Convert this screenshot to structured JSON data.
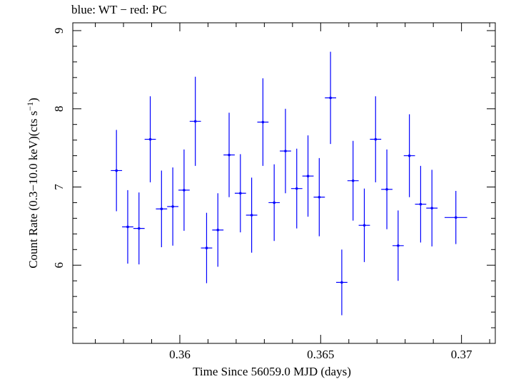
{
  "chart_data": {
    "type": "scatter",
    "title": "blue: WT − red: PC",
    "xlabel": "Time Since 56059.0 MJD (days)",
    "ylabel_prefix": "Count Rate (0.3−10.0 keV)(cts s",
    "ylabel_sup": "−1",
    "ylabel_suffix": ")",
    "xlim": [
      0.3562,
      0.3712
    ],
    "ylim": [
      5.0,
      9.1
    ],
    "xticks": [
      0.36,
      0.365,
      0.37
    ],
    "xtick_labels": [
      "0.36",
      "0.365",
      "0.37"
    ],
    "yticks": [
      6,
      7,
      8,
      9
    ],
    "ytick_labels": [
      "6",
      "7",
      "8",
      "9"
    ],
    "series": [
      {
        "color": "#0000ff",
        "points": [
          {
            "x": 0.35775,
            "y": 7.21,
            "xerr": 0.0002,
            "yerr": 0.52
          },
          {
            "x": 0.35815,
            "y": 6.49,
            "xerr": 0.0002,
            "yerr": 0.47
          },
          {
            "x": 0.35855,
            "y": 6.47,
            "xerr": 0.0002,
            "yerr": 0.46
          },
          {
            "x": 0.35895,
            "y": 7.61,
            "xerr": 0.0002,
            "yerr": 0.55
          },
          {
            "x": 0.35935,
            "y": 6.72,
            "xerr": 0.0002,
            "yerr": 0.49
          },
          {
            "x": 0.35975,
            "y": 6.75,
            "xerr": 0.0002,
            "yerr": 0.5
          },
          {
            "x": 0.36015,
            "y": 6.96,
            "xerr": 0.0002,
            "yerr": 0.52
          },
          {
            "x": 0.36055,
            "y": 7.84,
            "xerr": 0.0002,
            "yerr": 0.57
          },
          {
            "x": 0.36095,
            "y": 6.22,
            "xerr": 0.0002,
            "yerr": 0.45
          },
          {
            "x": 0.36135,
            "y": 6.45,
            "xerr": 0.0002,
            "yerr": 0.47
          },
          {
            "x": 0.36175,
            "y": 7.41,
            "xerr": 0.0002,
            "yerr": 0.54
          },
          {
            "x": 0.36215,
            "y": 6.92,
            "xerr": 0.0002,
            "yerr": 0.5
          },
          {
            "x": 0.36255,
            "y": 6.64,
            "xerr": 0.0002,
            "yerr": 0.48
          },
          {
            "x": 0.36295,
            "y": 7.83,
            "xerr": 0.0002,
            "yerr": 0.56
          },
          {
            "x": 0.36335,
            "y": 6.8,
            "xerr": 0.0002,
            "yerr": 0.49
          },
          {
            "x": 0.36375,
            "y": 7.46,
            "xerr": 0.0002,
            "yerr": 0.54
          },
          {
            "x": 0.36415,
            "y": 6.98,
            "xerr": 0.0002,
            "yerr": 0.51
          },
          {
            "x": 0.36455,
            "y": 7.14,
            "xerr": 0.0002,
            "yerr": 0.52
          },
          {
            "x": 0.36495,
            "y": 6.87,
            "xerr": 0.0002,
            "yerr": 0.5
          },
          {
            "x": 0.36535,
            "y": 8.14,
            "xerr": 0.0002,
            "yerr": 0.59
          },
          {
            "x": 0.36575,
            "y": 5.78,
            "xerr": 0.0002,
            "yerr": 0.42
          },
          {
            "x": 0.36615,
            "y": 7.08,
            "xerr": 0.0002,
            "yerr": 0.51
          },
          {
            "x": 0.36655,
            "y": 6.51,
            "xerr": 0.0002,
            "yerr": 0.47
          },
          {
            "x": 0.36695,
            "y": 7.61,
            "xerr": 0.0002,
            "yerr": 0.55
          },
          {
            "x": 0.36735,
            "y": 6.97,
            "xerr": 0.0002,
            "yerr": 0.51
          },
          {
            "x": 0.36775,
            "y": 6.25,
            "xerr": 0.0002,
            "yerr": 0.45
          },
          {
            "x": 0.36815,
            "y": 7.4,
            "xerr": 0.0002,
            "yerr": 0.53
          },
          {
            "x": 0.36855,
            "y": 6.78,
            "xerr": 0.0002,
            "yerr": 0.49
          },
          {
            "x": 0.36895,
            "y": 6.73,
            "xerr": 0.0002,
            "yerr": 0.49
          },
          {
            "x": 0.3698,
            "y": 6.61,
            "xerr": 0.0004,
            "yerr": 0.34
          }
        ]
      }
    ]
  }
}
